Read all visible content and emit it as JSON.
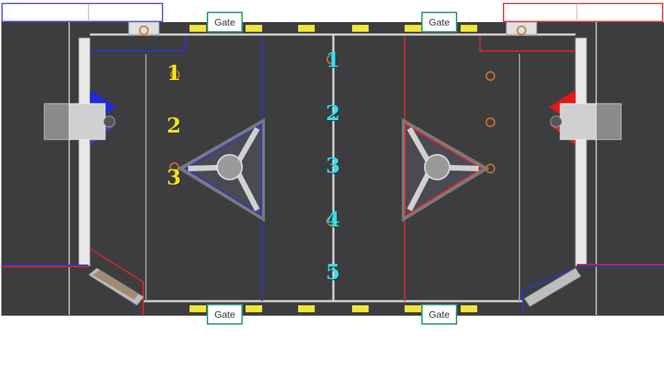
{
  "gates": {
    "top_left": "Gate",
    "top_right": "Gate",
    "bottom_left": "Gate",
    "bottom_right": "Gate"
  },
  "yellow_numbers": [
    "1",
    "2",
    "3"
  ],
  "cyan_numbers": [
    "1",
    "2",
    "3",
    "4",
    "5"
  ],
  "colors": {
    "carpet": "#3d3d3f",
    "blue_alliance": "#2c35c9",
    "red_alliance": "#d8242a",
    "yellow_marker": "#f2e53a",
    "gate_border": "#2e9a74",
    "yellow_number": "#f4e21a",
    "cyan_number": "#2fe0ee"
  }
}
